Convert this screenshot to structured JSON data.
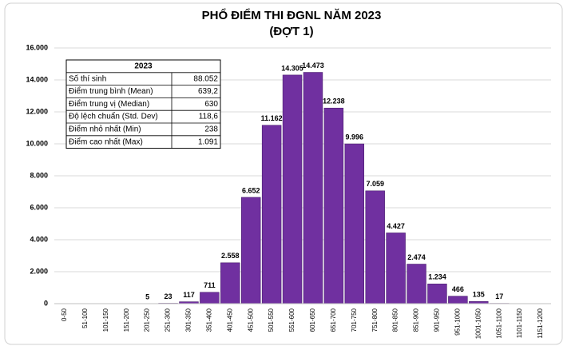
{
  "chart_data": {
    "type": "bar",
    "title": "PHỔ ĐIỂM THI ĐGNL NĂM 2023",
    "subtitle": "(ĐỢT 1)",
    "categories": [
      "0-50",
      "51-100",
      "101-150",
      "151-200",
      "201-250",
      "251-300",
      "301-350",
      "351-400",
      "401-450",
      "451-500",
      "501-550",
      "551-600",
      "601-650",
      "651-700",
      "701-750",
      "751-800",
      "801-850",
      "851-900",
      "901-950",
      "951-1000",
      "1001-1050",
      "1051-1100",
      "1101-1150",
      "1151-1200"
    ],
    "values": [
      0,
      0,
      0,
      0,
      5,
      23,
      117,
      711,
      2558,
      6652,
      11162,
      14305,
      14473,
      12238,
      9996,
      7059,
      4427,
      2474,
      1234,
      466,
      135,
      17,
      0,
      0
    ],
    "value_labels": [
      null,
      null,
      null,
      null,
      "5",
      "23",
      "117",
      "711",
      "2.558",
      "6.652",
      "11.162",
      "14.305",
      "14.473",
      "12.238",
      "9.996",
      "7.059",
      "4.427",
      "2.474",
      "1.234",
      "466",
      "135",
      "17",
      null,
      null
    ],
    "color": "#7030a0",
    "ylim": [
      0,
      16000
    ],
    "yticks": [
      0,
      {
        "value": 2000,
        "label": "2.000"
      },
      {
        "value": 4000,
        "label": "4.000"
      },
      {
        "value": 6000,
        "label": "6.000"
      },
      {
        "value": 8000,
        "label": "8.000"
      },
      {
        "value": 10000,
        "label": "10.000"
      },
      {
        "value": 12000,
        "label": "12.000"
      },
      {
        "value": 14000,
        "label": "14.000"
      },
      {
        "value": 16000,
        "label": "16.000"
      }
    ],
    "grid": true,
    "table": {
      "header": "2023",
      "rows": [
        [
          "Số thí sinh",
          "88.052"
        ],
        [
          "Điểm trung bình (Mean)",
          "639,2"
        ],
        [
          "Điểm trung vị (Median)",
          "630"
        ],
        [
          "Độ lệch chuẩn (Std. Dev)",
          "118,6"
        ],
        [
          "Điểm nhỏ nhất (Min)",
          "238"
        ],
        [
          "Điểm cao nhất (Max)",
          "1.091"
        ]
      ]
    }
  }
}
